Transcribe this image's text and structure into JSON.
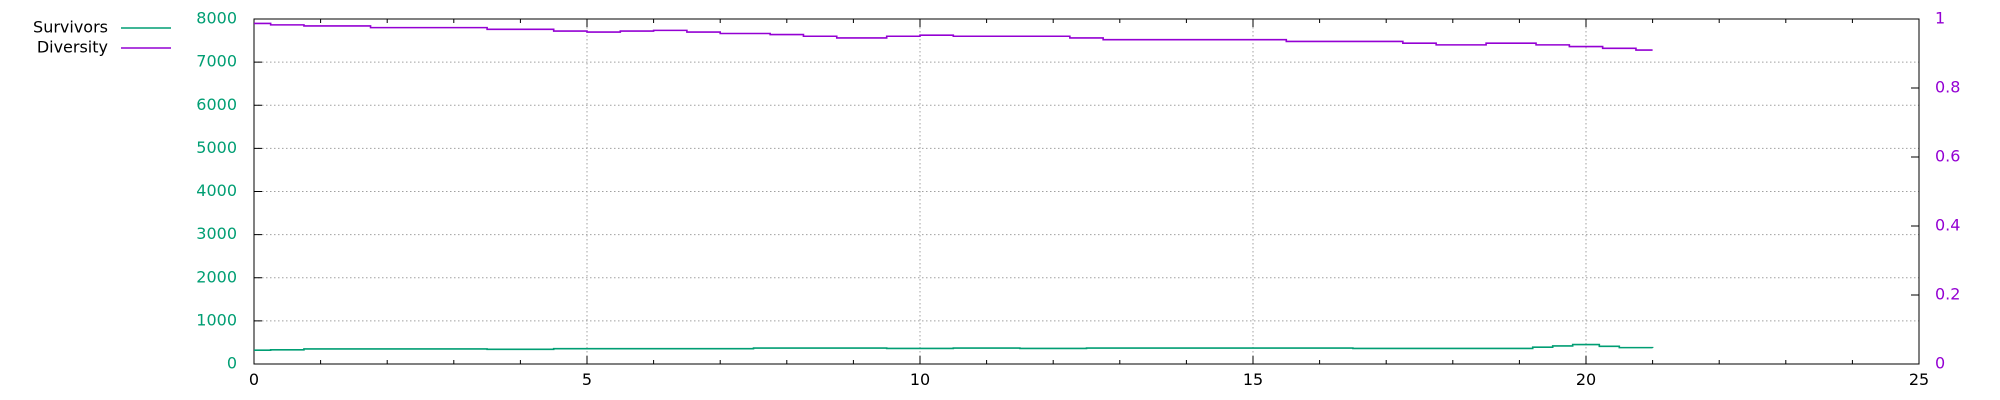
{
  "chart_data": {
    "type": "line",
    "xlim": [
      0,
      25
    ],
    "ylim_left": [
      0,
      8000
    ],
    "ylim_right": [
      0,
      1
    ],
    "x_ticks": [
      "0",
      "5",
      "10",
      "15",
      "20",
      "25"
    ],
    "y_left_ticks": [
      "0",
      "1000",
      "2000",
      "3000",
      "4000",
      "5000",
      "6000",
      "7000",
      "8000"
    ],
    "y_right_ticks": [
      "0",
      "0.2",
      "0.4",
      "0.6",
      "0.8",
      "1"
    ],
    "grid": true,
    "legend_placement": "top-left outside",
    "series": [
      {
        "name": "Survivors",
        "axis": "left",
        "color": "#009e73",
        "step": true,
        "points": [
          [
            0,
            320
          ],
          [
            0.25,
            330
          ],
          [
            0.75,
            350
          ],
          [
            3.5,
            340
          ],
          [
            4.5,
            355
          ],
          [
            7.5,
            370
          ],
          [
            9.5,
            360
          ],
          [
            10.5,
            370
          ],
          [
            11.5,
            360
          ],
          [
            12.5,
            370
          ],
          [
            16.5,
            360
          ],
          [
            19.2,
            390
          ],
          [
            19.5,
            420
          ],
          [
            19.8,
            450
          ],
          [
            20.2,
            410
          ],
          [
            20.5,
            380
          ],
          [
            21,
            370
          ]
        ]
      },
      {
        "name": "Diversity",
        "axis": "right",
        "color": "#9400d3",
        "step": true,
        "points": [
          [
            0,
            0.987
          ],
          [
            0.25,
            0.983
          ],
          [
            0.75,
            0.98
          ],
          [
            1.75,
            0.975
          ],
          [
            3.5,
            0.97
          ],
          [
            4.5,
            0.965
          ],
          [
            5,
            0.962
          ],
          [
            5.5,
            0.965
          ],
          [
            6,
            0.967
          ],
          [
            6.5,
            0.962
          ],
          [
            7,
            0.958
          ],
          [
            7.75,
            0.955
          ],
          [
            8.25,
            0.95
          ],
          [
            8.75,
            0.945
          ],
          [
            9.5,
            0.95
          ],
          [
            10,
            0.953
          ],
          [
            10.5,
            0.95
          ],
          [
            12.25,
            0.945
          ],
          [
            12.75,
            0.94
          ],
          [
            15.5,
            0.935
          ],
          [
            17.25,
            0.93
          ],
          [
            17.75,
            0.925
          ],
          [
            18.5,
            0.93
          ],
          [
            19.25,
            0.925
          ],
          [
            19.75,
            0.92
          ],
          [
            20.25,
            0.915
          ],
          [
            20.75,
            0.91
          ],
          [
            21,
            0.91
          ]
        ]
      }
    ]
  }
}
